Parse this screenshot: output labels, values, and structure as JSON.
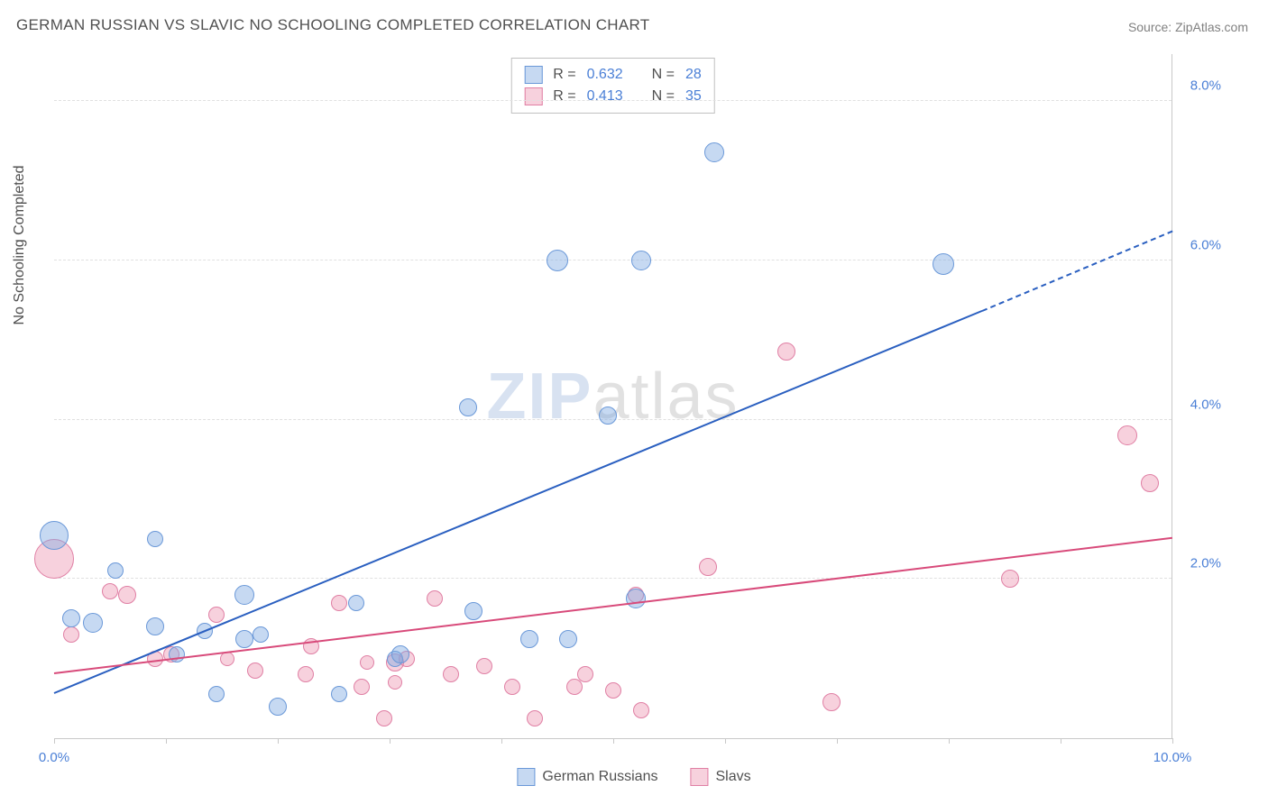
{
  "title": "GERMAN RUSSIAN VS SLAVIC NO SCHOOLING COMPLETED CORRELATION CHART",
  "source": {
    "label": "Source:",
    "value": "ZipAtlas.com"
  },
  "y_axis_label": "No Schooling Completed",
  "watermark": {
    "part1": "ZIP",
    "part2": "atlas"
  },
  "chart": {
    "type": "scatter",
    "xlim": [
      0,
      10
    ],
    "ylim": [
      0,
      8.6
    ],
    "x_ticks": [
      0,
      1,
      2,
      3,
      4,
      5,
      6,
      7,
      8,
      9,
      10
    ],
    "x_tick_labels": {
      "0": "0.0%",
      "10": "10.0%"
    },
    "y_gridlines": [
      2,
      4,
      6,
      8
    ],
    "y_tick_labels": {
      "2": "2.0%",
      "4": "4.0%",
      "6": "6.0%",
      "8": "8.0%"
    },
    "background_color": "#ffffff",
    "grid_color": "#e0e0e0",
    "axis_color": "#c8c8c8",
    "tick_label_color": "#4a7fd6"
  },
  "series": [
    {
      "name": "German Russians",
      "key": "german_russians",
      "fill": "rgba(128,170,226,0.45)",
      "stroke": "#6a98d8",
      "line_color": "#2a5fc0",
      "r_label": "R =",
      "r_value": "0.632",
      "n_label": "N =",
      "n_value": "28",
      "regression": {
        "x1": 0,
        "y1": 0.55,
        "x2": 8.3,
        "y2": 5.35,
        "dashed_to_x": 10,
        "dashed_to_y": 6.35
      },
      "points": [
        {
          "x": 0.0,
          "y": 2.55,
          "r": 16
        },
        {
          "x": 0.15,
          "y": 1.5,
          "r": 10
        },
        {
          "x": 0.35,
          "y": 1.45,
          "r": 11
        },
        {
          "x": 0.55,
          "y": 2.1,
          "r": 9
        },
        {
          "x": 0.9,
          "y": 2.5,
          "r": 9
        },
        {
          "x": 0.9,
          "y": 1.4,
          "r": 10
        },
        {
          "x": 1.1,
          "y": 1.05,
          "r": 9
        },
        {
          "x": 1.35,
          "y": 1.35,
          "r": 9
        },
        {
          "x": 1.45,
          "y": 0.55,
          "r": 9
        },
        {
          "x": 1.7,
          "y": 1.8,
          "r": 11
        },
        {
          "x": 1.7,
          "y": 1.25,
          "r": 10
        },
        {
          "x": 1.85,
          "y": 1.3,
          "r": 9
        },
        {
          "x": 2.0,
          "y": 0.4,
          "r": 10
        },
        {
          "x": 2.55,
          "y": 0.55,
          "r": 9
        },
        {
          "x": 2.7,
          "y": 1.7,
          "r": 9
        },
        {
          "x": 3.05,
          "y": 1.0,
          "r": 9
        },
        {
          "x": 3.1,
          "y": 1.05,
          "r": 10
        },
        {
          "x": 3.7,
          "y": 4.15,
          "r": 10
        },
        {
          "x": 3.75,
          "y": 1.6,
          "r": 10
        },
        {
          "x": 4.25,
          "y": 1.25,
          "r": 10
        },
        {
          "x": 4.5,
          "y": 6.0,
          "r": 12
        },
        {
          "x": 4.6,
          "y": 1.25,
          "r": 10
        },
        {
          "x": 4.95,
          "y": 4.05,
          "r": 10
        },
        {
          "x": 5.2,
          "y": 1.75,
          "r": 11
        },
        {
          "x": 5.25,
          "y": 6.0,
          "r": 11
        },
        {
          "x": 5.9,
          "y": 7.35,
          "r": 11
        },
        {
          "x": 7.95,
          "y": 5.95,
          "r": 12
        }
      ]
    },
    {
      "name": "Slavs",
      "key": "slavs",
      "fill": "rgba(235,140,170,0.40)",
      "stroke": "#e07fa4",
      "line_color": "#d84a7a",
      "r_label": "R =",
      "r_value": "0.413",
      "n_label": "N =",
      "n_value": "35",
      "regression": {
        "x1": 0,
        "y1": 0.8,
        "x2": 10,
        "y2": 2.5
      },
      "points": [
        {
          "x": 0.0,
          "y": 2.25,
          "r": 22
        },
        {
          "x": 0.15,
          "y": 1.3,
          "r": 9
        },
        {
          "x": 0.5,
          "y": 1.85,
          "r": 9
        },
        {
          "x": 0.65,
          "y": 1.8,
          "r": 10
        },
        {
          "x": 0.9,
          "y": 1.0,
          "r": 9
        },
        {
          "x": 1.05,
          "y": 1.05,
          "r": 9
        },
        {
          "x": 1.45,
          "y": 1.55,
          "r": 9
        },
        {
          "x": 1.55,
          "y": 1.0,
          "r": 8
        },
        {
          "x": 1.8,
          "y": 0.85,
          "r": 9
        },
        {
          "x": 2.25,
          "y": 0.8,
          "r": 9
        },
        {
          "x": 2.3,
          "y": 1.15,
          "r": 9
        },
        {
          "x": 2.55,
          "y": 1.7,
          "r": 9
        },
        {
          "x": 2.75,
          "y": 0.65,
          "r": 9
        },
        {
          "x": 2.8,
          "y": 0.95,
          "r": 8
        },
        {
          "x": 2.95,
          "y": 0.25,
          "r": 9
        },
        {
          "x": 3.05,
          "y": 0.95,
          "r": 10
        },
        {
          "x": 3.05,
          "y": 0.7,
          "r": 8
        },
        {
          "x": 3.15,
          "y": 1.0,
          "r": 9
        },
        {
          "x": 3.4,
          "y": 1.75,
          "r": 9
        },
        {
          "x": 3.55,
          "y": 0.8,
          "r": 9
        },
        {
          "x": 3.85,
          "y": 0.9,
          "r": 9
        },
        {
          "x": 4.1,
          "y": 0.65,
          "r": 9
        },
        {
          "x": 4.3,
          "y": 0.25,
          "r": 9
        },
        {
          "x": 4.65,
          "y": 0.65,
          "r": 9
        },
        {
          "x": 4.75,
          "y": 0.8,
          "r": 9
        },
        {
          "x": 5.0,
          "y": 0.6,
          "r": 9
        },
        {
          "x": 5.2,
          "y": 1.8,
          "r": 9
        },
        {
          "x": 5.25,
          "y": 0.35,
          "r": 9
        },
        {
          "x": 5.85,
          "y": 2.15,
          "r": 10
        },
        {
          "x": 6.55,
          "y": 4.85,
          "r": 10
        },
        {
          "x": 6.95,
          "y": 0.45,
          "r": 10
        },
        {
          "x": 8.55,
          "y": 2.0,
          "r": 10
        },
        {
          "x": 9.6,
          "y": 3.8,
          "r": 11
        },
        {
          "x": 9.8,
          "y": 3.2,
          "r": 10
        }
      ]
    }
  ],
  "bottom_legend": [
    {
      "label": "German Russians",
      "fill": "rgba(128,170,226,0.45)",
      "stroke": "#6a98d8"
    },
    {
      "label": "Slavs",
      "fill": "rgba(235,140,170,0.40)",
      "stroke": "#e07fa4"
    }
  ]
}
